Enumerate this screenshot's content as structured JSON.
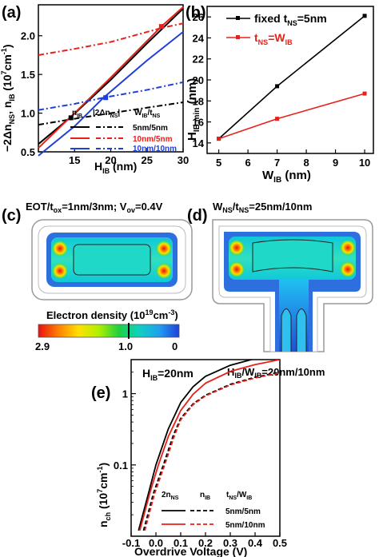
{
  "panels": {
    "a": "(a)",
    "b": "(b)",
    "c": "(c)",
    "d": "(d)",
    "e": "(e)"
  },
  "chart_data": [
    {
      "panel": "a",
      "type": "line",
      "xlabel_main": "H",
      "xlabel_sub": "IB",
      "xlabel_unit": " (nm)",
      "ylabel": "−2Δn, n (10cm)",
      "xlim": [
        10,
        30
      ],
      "ylim": [
        0.5,
        2.4
      ],
      "xticks": [
        "15",
        "20",
        "25",
        "30"
      ],
      "yticks": [
        "0.5",
        "1.0",
        "1.5",
        "2.0"
      ],
      "legend": {
        "col1": "n",
        "col1_sub": "IB",
        "col2": "|2Δn",
        "col2_sub": "NS",
        "col2_end": "|",
        "col3": "W",
        "col3_sub": "IB",
        "col3_mid": "/t",
        "col3_sub2": "NS",
        "rows": [
          "5nm/5nm",
          "10nm/5nm",
          "10nm/10nm"
        ]
      },
      "series": [
        {
          "name": "5nm/5nm n_IB",
          "color": "#000000",
          "dash": "solid",
          "x": [
            10,
            14.5,
            20,
            25,
            30
          ],
          "y": [
            0.6,
            0.95,
            1.43,
            1.9,
            2.35
          ]
        },
        {
          "name": "5nm/5nm |2Δn_NS|",
          "color": "#000000",
          "dash": "dashdot",
          "x": [
            10,
            14.5,
            20,
            25,
            30
          ],
          "y": [
            0.85,
            0.92,
            1.0,
            1.07,
            1.14
          ]
        },
        {
          "name": "10nm/5nm n_IB",
          "color": "#e8201a",
          "dash": "solid",
          "x": [
            10,
            15,
            20,
            27,
            30
          ],
          "y": [
            0.55,
            1.0,
            1.46,
            2.12,
            2.37
          ]
        },
        {
          "name": "10nm/5nm |2Δn_NS|",
          "color": "#e8201a",
          "dash": "dashdot",
          "x": [
            10,
            15,
            20,
            27,
            30
          ],
          "y": [
            1.75,
            1.83,
            1.92,
            2.1,
            2.16
          ]
        },
        {
          "name": "10nm/10nm n_IB",
          "color": "#1f3fd8",
          "dash": "solid",
          "x": [
            10,
            15,
            19,
            25,
            30
          ],
          "y": [
            0.45,
            0.83,
            1.2,
            1.68,
            2.05
          ]
        },
        {
          "name": "10nm/10nm |2Δn_NS|",
          "color": "#1f3fd8",
          "dash": "dashdot",
          "x": [
            10,
            15,
            19,
            25,
            30
          ],
          "y": [
            1.04,
            1.12,
            1.2,
            1.3,
            1.4
          ]
        }
      ]
    },
    {
      "panel": "b",
      "type": "line",
      "xlabel": "W (nm)",
      "ylabel": "H",
      "xlim": [
        4.6,
        10.3
      ],
      "ylim": [
        13,
        27
      ],
      "xticks": [
        "5",
        "6",
        "7",
        "8",
        "9",
        "10"
      ],
      "yticks": [
        "14",
        "16",
        "18",
        "20",
        "22",
        "24",
        "26"
      ],
      "legend": [
        {
          "label_main": "fixed t",
          "label_sub": "NS",
          "label_end": "=5nm",
          "color": "#000000"
        },
        {
          "label_main": "t",
          "label_sub": "NS",
          "label_end": "=W",
          "label_sub2": "IB",
          "color": "#e8201a"
        }
      ],
      "series": [
        {
          "name": "fixed t_NS=5nm",
          "color": "#000000",
          "x": [
            5,
            7,
            10
          ],
          "y": [
            14.4,
            19.4,
            26.1
          ]
        },
        {
          "name": "t_NS=W_IB",
          "color": "#e8201a",
          "x": [
            5,
            7,
            10
          ],
          "y": [
            14.4,
            16.3,
            18.7
          ]
        }
      ]
    },
    {
      "panel": "e",
      "type": "line",
      "xlabel": "Overdrive Voltage (V)",
      "ylabel": "n",
      "annotation_main": "H",
      "annotation_sub": "IB",
      "annotation_end": "=20nm",
      "xlim": [
        -0.1,
        0.5
      ],
      "ylim_log": [
        0.01,
        3
      ],
      "xticks": [
        "-0.1",
        "0.0",
        "0.1",
        "0.2",
        "0.3",
        "0.4",
        "0.5"
      ],
      "yticks": [
        "0.1",
        "1"
      ],
      "legend": {
        "col1": "2n",
        "col1_sub": "NS",
        "col2": "n",
        "col2_sub": "IB",
        "col3": "t",
        "col3_sub": "NS",
        "col3_mid": "/W",
        "col3_sub2": "IB",
        "rows": [
          "5nm/5nm",
          "5nm/10nm"
        ]
      },
      "series": [
        {
          "name": "5nm/5nm 2n_NS",
          "color": "#000000",
          "dash": "solid",
          "x": [
            -0.07,
            -0.03,
            0.0,
            0.05,
            0.1,
            0.15,
            0.2,
            0.3,
            0.4,
            0.5
          ],
          "y": [
            0.012,
            0.04,
            0.1,
            0.32,
            0.75,
            1.25,
            1.75,
            2.5,
            3.1,
            3.6
          ]
        },
        {
          "name": "5nm/5nm n_IB",
          "color": "#000000",
          "dash": "dashed",
          "x": [
            -0.05,
            -0.01,
            0.03,
            0.07,
            0.1,
            0.15,
            0.2,
            0.3,
            0.4,
            0.5
          ],
          "y": [
            0.012,
            0.04,
            0.1,
            0.26,
            0.45,
            0.72,
            0.95,
            1.35,
            1.7,
            2.0
          ]
        },
        {
          "name": "5nm/10nm 2n_NS",
          "color": "#e8201a",
          "dash": "solid",
          "x": [
            -0.065,
            -0.025,
            0.01,
            0.05,
            0.1,
            0.15,
            0.2,
            0.3,
            0.4,
            0.5
          ],
          "y": [
            0.012,
            0.04,
            0.1,
            0.25,
            0.58,
            0.98,
            1.4,
            2.05,
            2.55,
            3.0
          ]
        },
        {
          "name": "5nm/10nm n_IB",
          "color": "#e8201a",
          "dash": "dashed",
          "x": [
            -0.045,
            -0.005,
            0.035,
            0.075,
            0.1,
            0.15,
            0.2,
            0.3,
            0.4,
            0.5
          ],
          "y": [
            0.012,
            0.04,
            0.1,
            0.26,
            0.43,
            0.7,
            0.93,
            1.32,
            1.66,
            1.95
          ]
        }
      ]
    }
  ],
  "panel_c": {
    "title": "EOT/t",
    "title_sub": "ox",
    "title_end": "=1nm/3nm;  V",
    "title_sub2": "ov",
    "title_end2": "=0.4V",
    "colorbar_title": "Electron density (10",
    "colorbar_exp": "19",
    "colorbar_unit": "cm",
    "colorbar_exp2": "-3",
    "colorbar_end": ")",
    "colorbar_ticks": [
      "2.9",
      "1.0",
      "0"
    ],
    "colorbar_stops": [
      "#e81010",
      "#ff8000",
      "#ffe000",
      "#b0f000",
      "#20d040",
      "#10d0c0",
      "#20a0f0",
      "#2040d8"
    ]
  },
  "panel_d": {
    "title": "W",
    "title_sub": "NS",
    "title_mid": "/t",
    "title_sub2": "NS",
    "title_end": "=25nm/10nm",
    "bottom_label": "H",
    "bottom_sub": "IB",
    "bottom_mid": "/W",
    "bottom_sub2": "IB",
    "bottom_end": "=20nm/10nm"
  }
}
